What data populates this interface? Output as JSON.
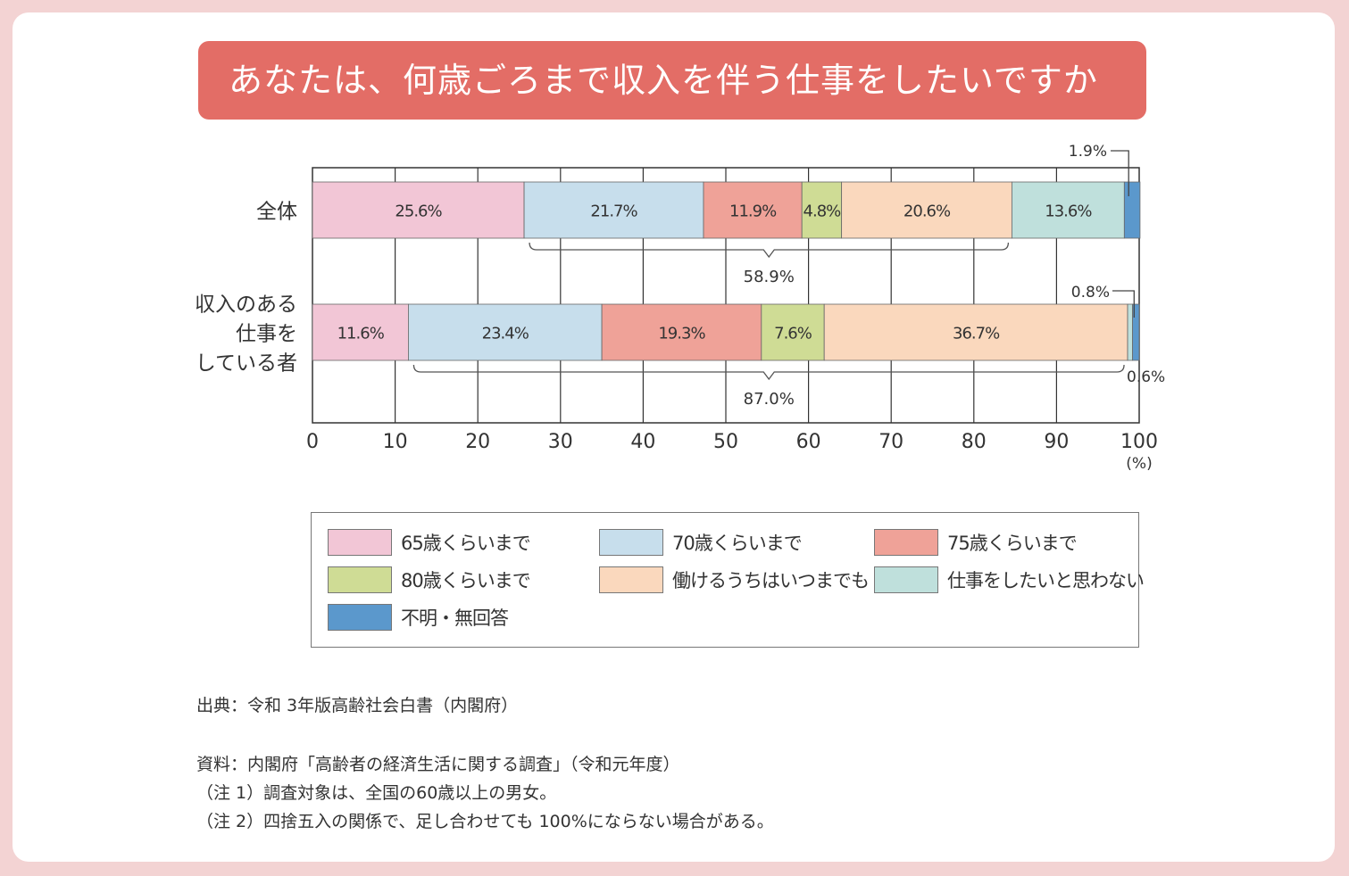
{
  "title": "あなたは、何歳ごろまで収入を伴う仕事をしたいですか",
  "chart_data": {
    "type": "bar",
    "orientation": "horizontal-stacked",
    "unit": "(%)",
    "xlim": [
      0,
      100
    ],
    "x_ticks": [
      "0",
      "10",
      "20",
      "30",
      "40",
      "50",
      "60",
      "70",
      "80",
      "90",
      "100"
    ],
    "grid": true,
    "categories": [
      {
        "label_lines": [
          "全体"
        ],
        "values": [
          25.6,
          21.7,
          11.9,
          4.8,
          20.6,
          13.6,
          1.9
        ],
        "labels": [
          "25.6%",
          "21.7%",
          "11.9%",
          "4.8%",
          "20.6%",
          "13.6%",
          "1.9%"
        ],
        "bracket": {
          "from": 25.6,
          "to": 84.6,
          "label": "58.9%"
        }
      },
      {
        "label_lines": [
          "収入のある",
          "仕事を",
          "している者"
        ],
        "values": [
          11.6,
          23.4,
          19.3,
          7.6,
          36.7,
          0.6,
          0.8
        ],
        "labels": [
          "11.6%",
          "23.4%",
          "19.3%",
          "7.6%",
          "36.7%",
          "0.6%",
          "0.8%"
        ],
        "bracket": {
          "from": 11.6,
          "to": 98.6,
          "label": "87.0%"
        }
      }
    ],
    "series": [
      {
        "name": "65歳くらいまで",
        "color": "#f2c6d6"
      },
      {
        "name": "70歳くらいまで",
        "color": "#c7deec"
      },
      {
        "name": "75歳くらいまで",
        "color": "#efa298"
      },
      {
        "name": "80歳くらいまで",
        "color": "#cfdc95"
      },
      {
        "name": "働けるうちはいつまでも",
        "color": "#fad8bd"
      },
      {
        "name": "仕事をしたいと思わない",
        "color": "#bfe0dc"
      },
      {
        "name": "不明・無回答",
        "color": "#5b98cc"
      }
    ],
    "legend_position": "bottom"
  },
  "notes": {
    "source": "出典：令和 3年版高齢社会白書（内閣府）",
    "data_source": "資料：内閣府「高齢者の経済生活に関する調査」（令和元年度）",
    "note1": "（注 1）調査対象は、全国の60歳以上の男女。",
    "note2": "（注 2）四捨五入の関係で、足し合わせても 100%にならない場合がある。"
  }
}
